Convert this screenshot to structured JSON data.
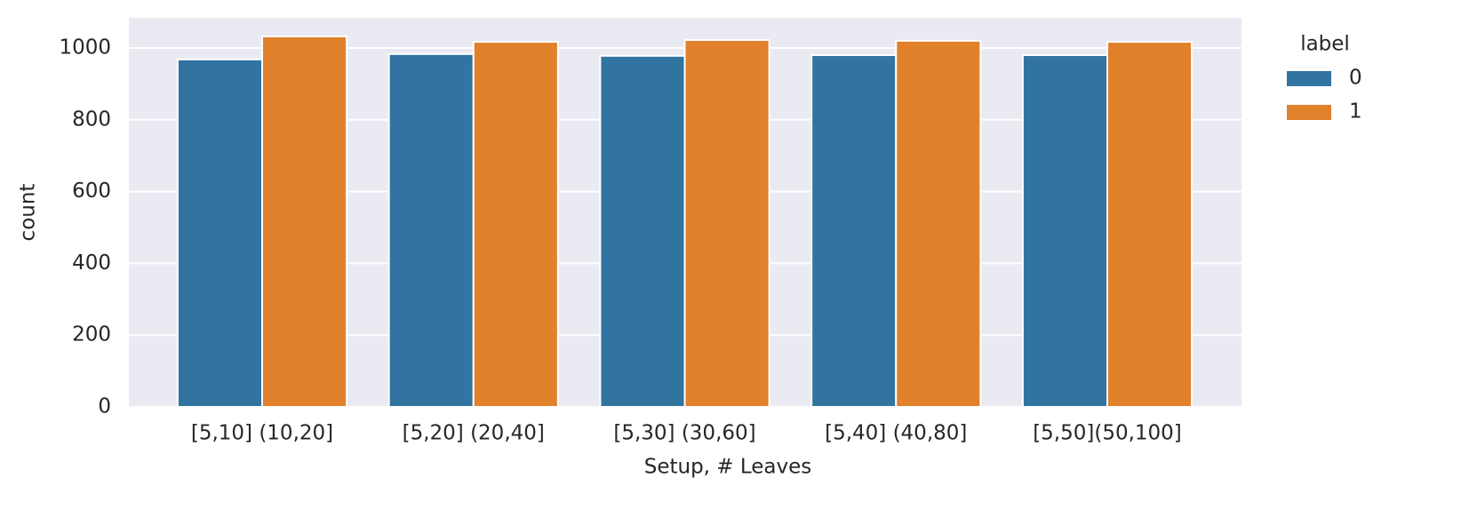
{
  "chart_data": {
    "type": "bar",
    "x_label": "Setup, # Leaves",
    "y_label": "count",
    "categories": [
      "[5,10] (10,20]",
      "[5,20] (20,40]",
      "[5,30] (30,60]",
      "[5,40] (40,80]",
      "[5,50](50,100]"
    ],
    "series": [
      {
        "name": "0",
        "color": "#3274a1",
        "values": [
          968,
          983,
          978,
          980,
          980
        ]
      },
      {
        "name": "1",
        "color": "#e1812c",
        "values": [
          1032,
          1017,
          1022,
          1020,
          1017
        ]
      }
    ],
    "legend_title": "label",
    "ylim": [
      0,
      1084
    ],
    "yticks": [
      0,
      200,
      400,
      600,
      800,
      1000
    ],
    "grid": true
  }
}
